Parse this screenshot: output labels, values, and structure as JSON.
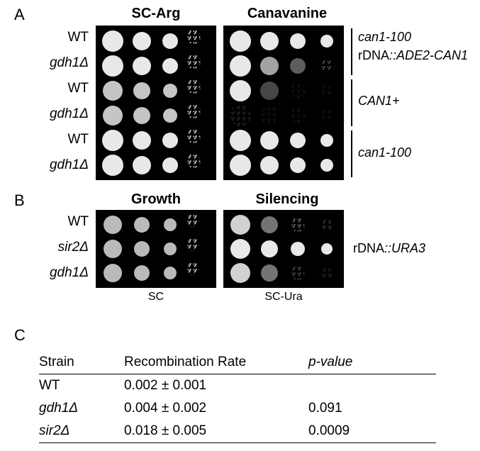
{
  "panelA": {
    "label": "A",
    "headers": {
      "left": "SC-Arg",
      "right": "Canavanine"
    },
    "rows": [
      "WT",
      "gdh1Δ",
      "WT",
      "gdh1Δ",
      "WT",
      "gdh1Δ"
    ],
    "sideLabels": [
      {
        "line1": "can1-100",
        "line2": "rDNA::ADE2-CAN1",
        "italic1": true,
        "italic2plain": "rDNA",
        "italic2rest": "::ADE2-CAN1"
      },
      {
        "line1": "CAN1+",
        "italic1": true
      },
      {
        "line1": "can1-100",
        "italic1": true
      }
    ],
    "plateStyle": {
      "bg": "#000000",
      "spotColor": "#e5e5e5",
      "rows": 6,
      "cols": 4,
      "spotSizes": [
        30,
        26,
        22,
        18
      ]
    },
    "rightPlateOpacity": [
      [
        1,
        1,
        1,
        1
      ],
      [
        1,
        0.7,
        0.4,
        0.2
      ],
      [
        1,
        0.3,
        0.05,
        0.05
      ],
      [
        0.1,
        0.05,
        0.05,
        0.05
      ],
      [
        1,
        1,
        1,
        1
      ],
      [
        1,
        1,
        1,
        1
      ]
    ]
  },
  "panelB": {
    "label": "B",
    "headers": {
      "left": "Growth",
      "right": "Silencing"
    },
    "rows": [
      "WT",
      "sir2Δ",
      "gdh1Δ"
    ],
    "bottomLabels": {
      "left": "SC",
      "right": "SC-Ura"
    },
    "sideLabel": {
      "plain": "rDNA",
      "italic": "::URA3"
    },
    "plateStyle": {
      "bg": "#000000",
      "spotColor": "#c8c8c8",
      "rows": 3,
      "cols": 4,
      "spotSizes": [
        28,
        24,
        20,
        16
      ]
    },
    "rightPlateOpacity": [
      [
        0.9,
        0.5,
        0.3,
        0.15
      ],
      [
        1,
        1,
        1,
        1
      ],
      [
        0.9,
        0.5,
        0.2,
        0.1
      ]
    ]
  },
  "panelC": {
    "label": "C",
    "headers": {
      "strain": "Strain",
      "rate": "Recombination Rate",
      "pval": "p-value"
    },
    "data": [
      {
        "strain": "WT",
        "rate": "0.002 ± 0.001",
        "pval": ""
      },
      {
        "strain": "gdh1Δ",
        "italic": true,
        "rate": "0.004 ± 0.002",
        "pval": "0.091"
      },
      {
        "strain": "sir2Δ",
        "italic": true,
        "rate": "0.018 ± 0.005",
        "pval": "0.0009"
      }
    ]
  }
}
